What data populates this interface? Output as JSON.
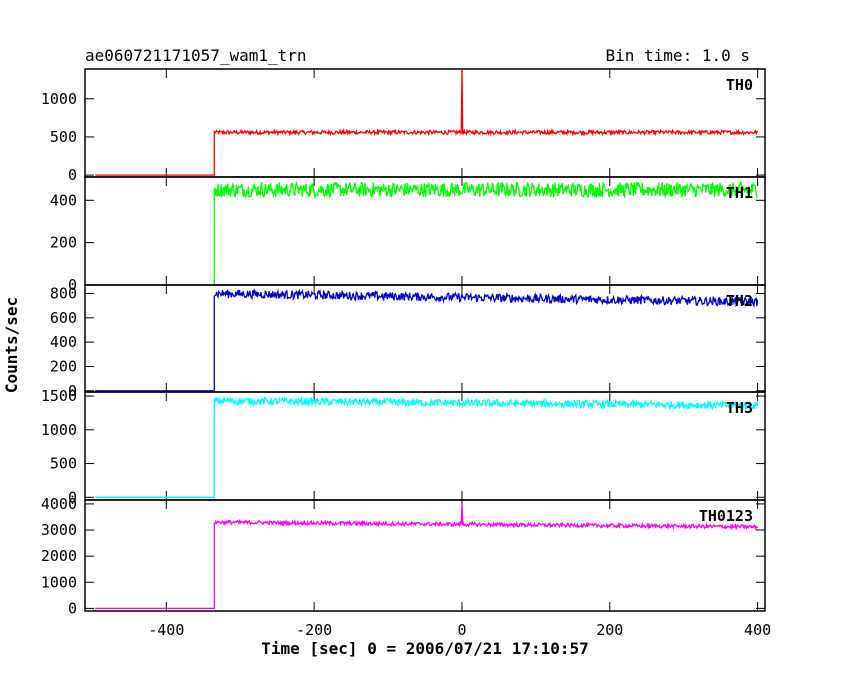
{
  "chart_data": {
    "type": "line",
    "title": "ae060721171057_wam1_trn",
    "subtitle": "Bin time: 1.0 s",
    "xlabel": "Time [sec] 0 = 2006/07/21 17:10:57",
    "ylabel": "Counts/sec",
    "xlim": [
      -510,
      410
    ],
    "x_ticks": [
      "-400",
      "-200",
      "0",
      "200",
      "400"
    ],
    "x_tick_values": [
      -400,
      -200,
      0,
      200,
      400
    ],
    "grid": false,
    "panels": [
      {
        "name": "TH0",
        "color": "#ff0000",
        "ylim": [
          -25,
          1390
        ],
        "y_ticks": [
          "0",
          "500",
          "1000"
        ],
        "y_tick_values": [
          0,
          500,
          1000
        ],
        "series": {
          "pre_level": 0,
          "rise_time": -335,
          "post_level_start": 560,
          "post_level_end": 560,
          "noise": 25,
          "spike": {
            "x": 0,
            "y": 1390
          }
        }
      },
      {
        "name": "TH1",
        "color": "#00ff00",
        "ylim": [
          0,
          510
        ],
        "y_ticks": [
          "0",
          "200",
          "400"
        ],
        "y_tick_values": [
          0,
          200,
          400
        ],
        "series": {
          "pre_level": 0,
          "rise_time": -335,
          "post_level_start": 450,
          "post_level_end": 450,
          "noise": 35
        }
      },
      {
        "name": "TH2",
        "color": "#0000cc",
        "ylim": [
          -10,
          870
        ],
        "y_ticks": [
          "0",
          "200",
          "400",
          "600",
          "800"
        ],
        "y_tick_values": [
          0,
          200,
          400,
          600,
          800
        ],
        "series": {
          "pre_level": 0,
          "rise_time": -335,
          "post_level_start": 800,
          "post_level_end": 730,
          "noise": 35
        }
      },
      {
        "name": "TH3",
        "color": "#00ffff",
        "ylim": [
          -40,
          1560
        ],
        "y_ticks": [
          "0",
          "500",
          "1000",
          "1500"
        ],
        "y_tick_values": [
          0,
          500,
          1000,
          1500
        ],
        "series": {
          "pre_level": 0,
          "rise_time": -335,
          "post_level_start": 1430,
          "post_level_end": 1360,
          "noise": 55
        }
      },
      {
        "name": "TH0123",
        "color": "#ff00ff",
        "ylim": [
          -100,
          4150
        ],
        "y_ticks": [
          "0",
          "1000",
          "2000",
          "3000",
          "4000"
        ],
        "y_tick_values": [
          0,
          1000,
          2000,
          3000,
          4000
        ],
        "series": {
          "pre_level": 0,
          "rise_time": -335,
          "post_level_start": 3300,
          "post_level_end": 3120,
          "noise": 70,
          "spike": {
            "x": 0,
            "y": 4000
          }
        }
      }
    ]
  }
}
